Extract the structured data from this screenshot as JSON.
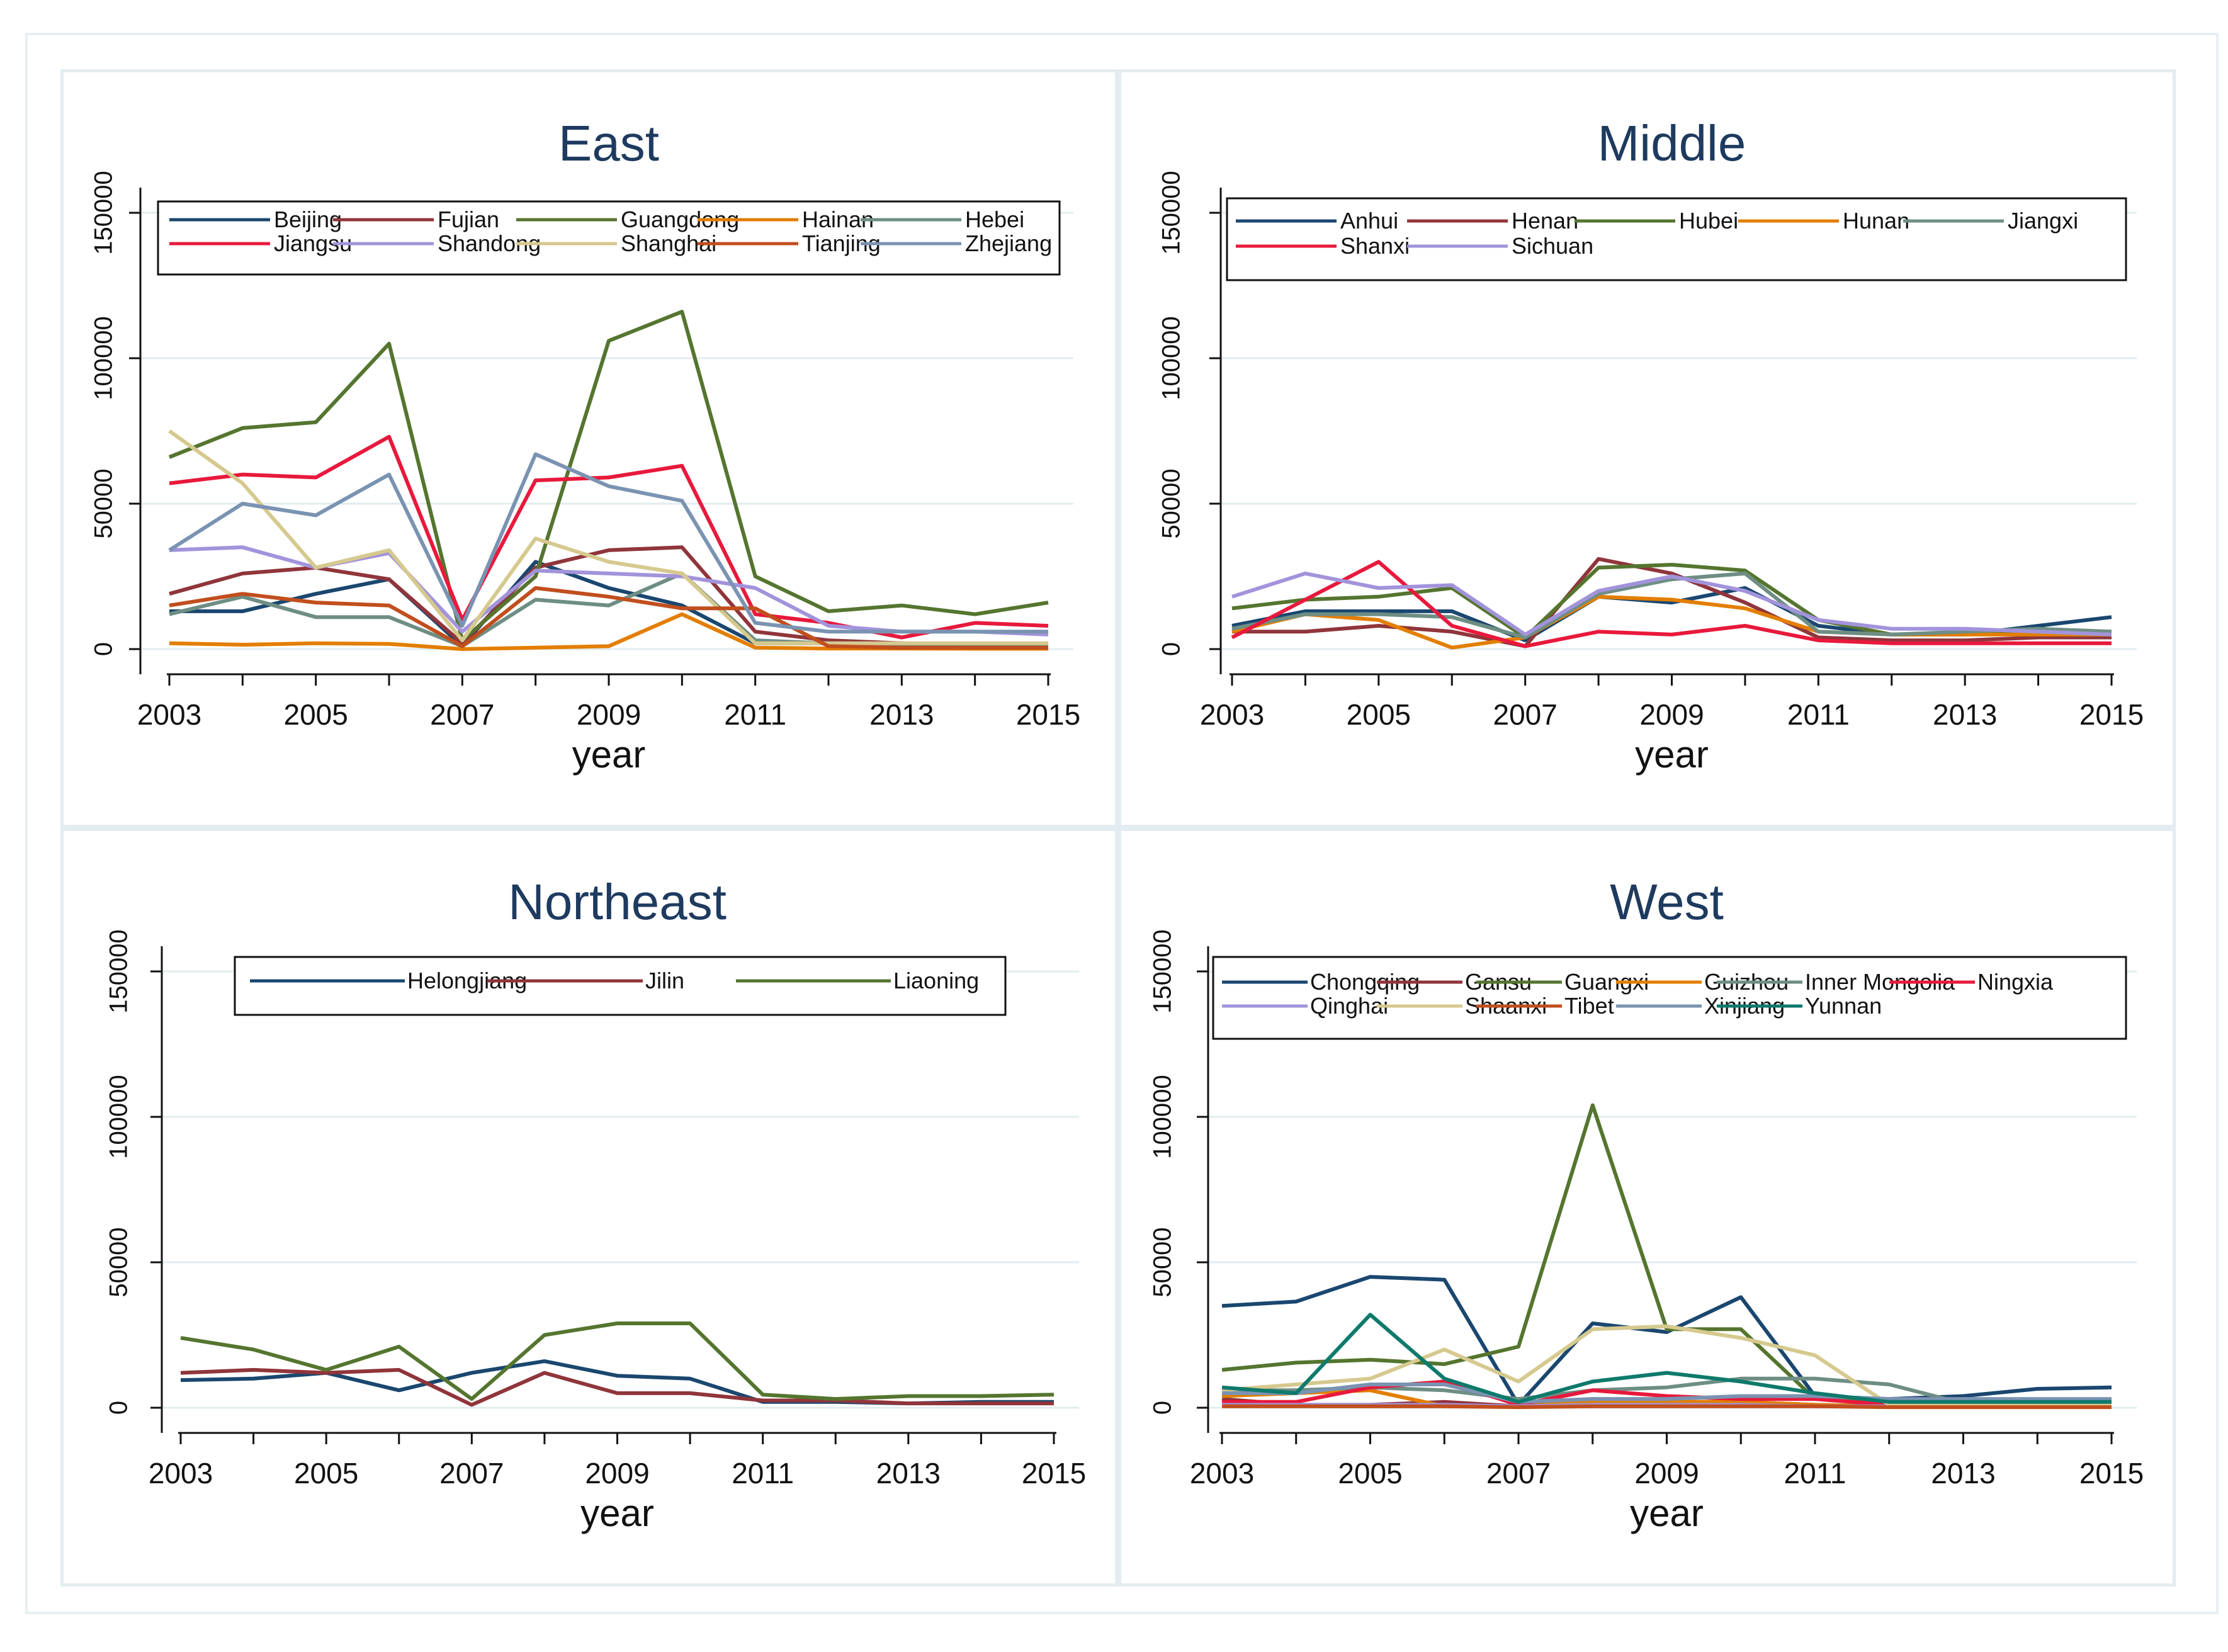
{
  "chart_data": [
    {
      "type": "line",
      "title": "East",
      "xlabel": "year",
      "ylabel": "",
      "x": [
        2003,
        2004,
        2005,
        2006,
        2007,
        2008,
        2009,
        2010,
        2011,
        2012,
        2013,
        2014,
        2015
      ],
      "xticks": [
        "2003",
        "2005",
        "2007",
        "2009",
        "2011",
        "2013",
        "2015"
      ],
      "yticks": [
        "0",
        "50000",
        "100000",
        "150000"
      ],
      "ylim": [
        0,
        150000
      ],
      "legend_position": "top",
      "series": [
        {
          "name": "Beijing",
          "color": "#1a476f",
          "values": [
            13000,
            13000,
            19000,
            24000,
            1000,
            30000,
            21000,
            15000,
            2000,
            2000,
            2000,
            1000,
            1000
          ]
        },
        {
          "name": "Fujian",
          "color": "#90353b",
          "values": [
            19000,
            26000,
            28000,
            24000,
            2000,
            28000,
            34000,
            35000,
            6000,
            3000,
            2000,
            1000,
            1000
          ]
        },
        {
          "name": "Guangdong",
          "color": "#55752f",
          "values": [
            66000,
            76000,
            78000,
            105000,
            3000,
            25000,
            106000,
            116000,
            25000,
            13000,
            15000,
            12000,
            16000
          ]
        },
        {
          "name": "Hainan",
          "color": "#e37e00",
          "values": [
            2000,
            1500,
            2000,
            1800,
            0,
            500,
            1000,
            12000,
            500,
            200,
            200,
            100,
            100
          ]
        },
        {
          "name": "Hebei",
          "color": "#6e8e84",
          "values": [
            12000,
            18000,
            11000,
            11000,
            1000,
            17000,
            15000,
            26000,
            3000,
            2000,
            1500,
            1500,
            1500
          ]
        },
        {
          "name": "Jiangsu",
          "color": "#e8193c",
          "values": [
            57000,
            60000,
            59000,
            73000,
            10000,
            58000,
            59000,
            63000,
            12000,
            9000,
            4000,
            9000,
            8000
          ]
        },
        {
          "name": "Shandong",
          "color": "#a293db",
          "values": [
            34000,
            35000,
            28000,
            33000,
            6000,
            27000,
            26000,
            25000,
            21000,
            8000,
            6000,
            6000,
            5000
          ]
        },
        {
          "name": "Shanghai",
          "color": "#d6c98e",
          "values": [
            75000,
            57000,
            28000,
            34000,
            3000,
            38000,
            30000,
            26000,
            2000,
            2000,
            2000,
            2000,
            2000
          ]
        },
        {
          "name": "Tianjing",
          "color": "#c14e1d",
          "values": [
            15000,
            19000,
            16000,
            15000,
            1000,
            21000,
            18000,
            14000,
            14000,
            1000,
            500,
            500,
            500
          ]
        },
        {
          "name": "Zhejiang",
          "color": "#7a93b2",
          "values": [
            34000,
            50000,
            46000,
            60000,
            8000,
            67000,
            56000,
            51000,
            9000,
            6000,
            6000,
            6000,
            6000
          ]
        }
      ]
    },
    {
      "type": "line",
      "title": "Middle",
      "xlabel": "year",
      "ylabel": "",
      "x": [
        2003,
        2004,
        2005,
        2006,
        2007,
        2008,
        2009,
        2010,
        2011,
        2012,
        2013,
        2014,
        2015
      ],
      "xticks": [
        "2003",
        "2005",
        "2007",
        "2009",
        "2011",
        "2013",
        "2015"
      ],
      "yticks": [
        "0",
        "50000",
        "100000",
        "150000"
      ],
      "ylim": [
        0,
        150000
      ],
      "legend_position": "top",
      "series": [
        {
          "name": "Anhui",
          "color": "#1a476f",
          "values": [
            8000,
            13000,
            13000,
            13000,
            3000,
            18000,
            16000,
            21000,
            8000,
            5000,
            5000,
            8000,
            11000
          ]
        },
        {
          "name": "Henan",
          "color": "#90353b",
          "values": [
            6000,
            6000,
            8000,
            6000,
            1000,
            31000,
            26000,
            16000,
            4000,
            3000,
            3000,
            4000,
            4000
          ]
        },
        {
          "name": "Hubei",
          "color": "#55752f",
          "values": [
            14000,
            17000,
            18000,
            21000,
            4000,
            28000,
            29000,
            27000,
            10000,
            5000,
            5000,
            6000,
            6000
          ]
        },
        {
          "name": "Hunan",
          "color": "#e37e00",
          "values": [
            6000,
            12000,
            10000,
            500,
            4000,
            18000,
            17000,
            14000,
            6000,
            5000,
            5000,
            5000,
            5000
          ]
        },
        {
          "name": "Jiangxi",
          "color": "#6e8e84",
          "values": [
            7000,
            12000,
            12000,
            11000,
            4000,
            19000,
            24000,
            26000,
            6000,
            5000,
            6000,
            7000,
            6000
          ]
        },
        {
          "name": "Shanxi",
          "color": "#e8193c",
          "values": [
            4000,
            17000,
            30000,
            8000,
            1000,
            6000,
            5000,
            8000,
            3000,
            2000,
            2000,
            2000,
            2000
          ]
        },
        {
          "name": "Sichuan",
          "color": "#a293db",
          "values": [
            18000,
            26000,
            21000,
            22000,
            5000,
            20000,
            25000,
            20000,
            10000,
            7000,
            7000,
            6000,
            5000
          ]
        }
      ]
    },
    {
      "type": "line",
      "title": "Northeast",
      "xlabel": "year",
      "ylabel": "",
      "x": [
        2003,
        2004,
        2005,
        2006,
        2007,
        2008,
        2009,
        2010,
        2011,
        2012,
        2013,
        2014,
        2015
      ],
      "xticks": [
        "2003",
        "2005",
        "2007",
        "2009",
        "2011",
        "2013",
        "2015"
      ],
      "yticks": [
        "0",
        "50000",
        "100000",
        "150000"
      ],
      "ylim": [
        0,
        150000
      ],
      "legend_position": "top",
      "series": [
        {
          "name": "Helongjiang",
          "color": "#1a476f",
          "values": [
            9500,
            10000,
            12000,
            6000,
            12000,
            16000,
            11000,
            10000,
            2000,
            2000,
            1500,
            2000,
            2000
          ]
        },
        {
          "name": "Jilin",
          "color": "#90353b",
          "values": [
            12000,
            13000,
            12000,
            13000,
            1000,
            12000,
            5000,
            5000,
            2500,
            2500,
            1500,
            1500,
            1500
          ]
        },
        {
          "name": "Liaoning",
          "color": "#55752f",
          "values": [
            24000,
            20000,
            13000,
            21000,
            3000,
            25000,
            29000,
            29000,
            4500,
            3000,
            4000,
            4000,
            4500
          ]
        }
      ]
    },
    {
      "type": "line",
      "title": "West",
      "xlabel": "year",
      "ylabel": "",
      "x": [
        2003,
        2004,
        2005,
        2006,
        2007,
        2008,
        2009,
        2010,
        2011,
        2012,
        2013,
        2014,
        2015
      ],
      "xticks": [
        "2003",
        "2005",
        "2007",
        "2009",
        "2011",
        "2013",
        "2015"
      ],
      "yticks": [
        "0",
        "50000",
        "100000",
        "150000"
      ],
      "ylim": [
        0,
        150000
      ],
      "legend_position": "top",
      "series": [
        {
          "name": "Chongqing",
          "color": "#1a476f",
          "values": [
            35000,
            36500,
            45000,
            44000,
            1000,
            29000,
            26000,
            38000,
            4000,
            3000,
            4000,
            6500,
            7000
          ]
        },
        {
          "name": "Gansu",
          "color": "#90353b",
          "values": [
            3000,
            1000,
            1000,
            2000,
            500,
            3000,
            2000,
            2000,
            1000,
            500,
            500,
            500,
            500
          ]
        },
        {
          "name": "Guangxi",
          "color": "#55752f",
          "values": [
            13000,
            15500,
            16500,
            15000,
            21000,
            104000,
            27000,
            27000,
            3000,
            2000,
            2000,
            2000,
            2000
          ]
        },
        {
          "name": "Guizhou",
          "color": "#e37e00",
          "values": [
            4000,
            5000,
            6000,
            500,
            500,
            2000,
            2000,
            2000,
            1000,
            500,
            500,
            500,
            500
          ]
        },
        {
          "name": "Inner Mongolia",
          "color": "#6e8e84",
          "values": [
            6000,
            6000,
            7000,
            6000,
            3000,
            6000,
            7000,
            10000,
            10000,
            8000,
            1500,
            1500,
            1500
          ]
        },
        {
          "name": "Ningxia",
          "color": "#e8193c",
          "values": [
            2000,
            2000,
            7000,
            9000,
            1000,
            6000,
            4000,
            3000,
            3000,
            1000,
            500,
            500,
            500
          ]
        },
        {
          "name": "Qinghai",
          "color": "#a293db",
          "values": [
            1000,
            1000,
            1000,
            1000,
            500,
            1000,
            1000,
            1000,
            500,
            500,
            500,
            500,
            500
          ]
        },
        {
          "name": "Shaanxi",
          "color": "#d6c98e",
          "values": [
            6000,
            8000,
            10000,
            20000,
            9000,
            27000,
            28000,
            24000,
            18000,
            1000,
            1000,
            1000,
            1000
          ]
        },
        {
          "name": "Tibet",
          "color": "#c14e1d",
          "values": [
            500,
            500,
            500,
            500,
            200,
            500,
            500,
            500,
            500,
            200,
            200,
            200,
            200
          ]
        },
        {
          "name": "Xinjiang",
          "color": "#7a93b2",
          "values": [
            5000,
            5000,
            8000,
            8000,
            2000,
            3000,
            3000,
            4000,
            4000,
            3000,
            3000,
            3000,
            3000
          ]
        },
        {
          "name": "Yunnan",
          "color": "#0e7a6c",
          "values": [
            7000,
            5000,
            32000,
            10000,
            2000,
            9000,
            12000,
            9000,
            5000,
            2000,
            2000,
            2000,
            2000
          ]
        }
      ]
    }
  ]
}
